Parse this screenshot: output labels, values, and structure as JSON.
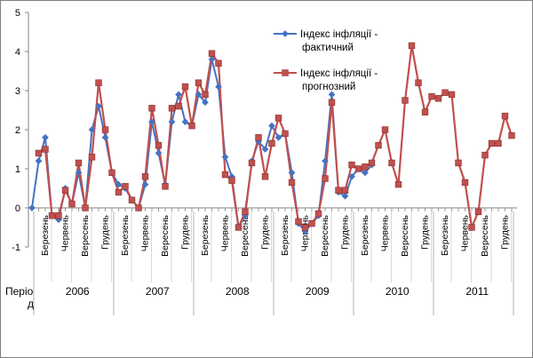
{
  "chart_data": {
    "type": "line",
    "title": "",
    "xlabel": "Період",
    "ylabel": "",
    "ylim": [
      -1,
      5
    ],
    "yticks": [
      -1,
      0,
      1,
      2,
      3,
      4,
      5
    ],
    "grid": false,
    "legend_position": "top-center",
    "years": [
      "2006",
      "2007",
      "2008",
      "2009",
      "2010",
      "2011"
    ],
    "month_labels": [
      "Березень",
      "Червень",
      "Вересень",
      "Грудень"
    ],
    "series": [
      {
        "name": "Індекс інфляції - фактичний",
        "color": "#4472C4",
        "marker": "diamond",
        "values": [
          0,
          1.2,
          1.8,
          -0.2,
          -0.3,
          0.5,
          0.1,
          0.9,
          0,
          2,
          2.6,
          1.8,
          0.9,
          0.6,
          0.5,
          0.2,
          0,
          0.6,
          2.2,
          1.4,
          0.6,
          2.2,
          2.9,
          2.2,
          2.1,
          2.9,
          2.7,
          3.8,
          3.1,
          1.3,
          0.8,
          -0.5,
          -0.2,
          1.2,
          1.7,
          1.5,
          2.1,
          1.8,
          1.9,
          0.9,
          -0.4,
          -0.6,
          -0.4,
          -0.2,
          1.2,
          2.9,
          0.4,
          0.3,
          0.8,
          1,
          0.9,
          1.1
        ]
      },
      {
        "name": "Індекс інфляції - прогнозний",
        "color": "#C0504D",
        "marker": "square",
        "values": [
          null,
          1.4,
          1.5,
          -0.2,
          -0.2,
          0.45,
          0.1,
          1.15,
          0,
          1.3,
          3.2,
          2,
          0.9,
          0.4,
          0.55,
          0.2,
          0,
          0.8,
          2.55,
          1.6,
          0.55,
          2.55,
          2.6,
          3.1,
          2.1,
          3.2,
          2.9,
          3.95,
          3.7,
          0.85,
          0.7,
          -0.5,
          -0.1,
          1.15,
          1.8,
          0.8,
          1.65,
          2.3,
          1.9,
          0.65,
          -0.35,
          -0.5,
          -0.4,
          -0.15,
          0.75,
          2.7,
          0.45,
          0.45,
          1.1,
          1,
          1.05,
          1.15,
          1.6,
          2,
          1.15,
          0.6,
          2.75,
          4.15,
          3.2,
          2.45,
          2.85,
          2.8,
          2.95,
          2.9,
          1.15,
          0.65,
          -0.5,
          -0.1,
          1.35,
          1.65,
          1.65,
          2.35,
          1.85
        ]
      }
    ]
  }
}
